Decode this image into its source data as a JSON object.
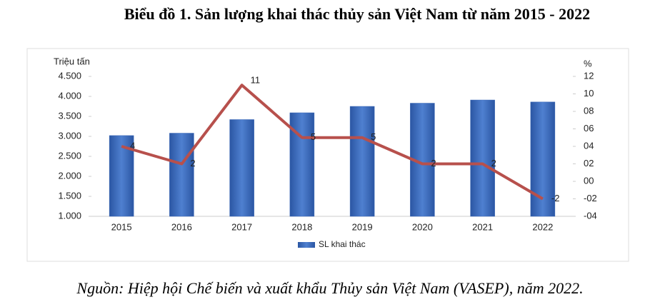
{
  "chart_data": {
    "type": "bar",
    "title": "Biểu đồ 1. Sản lượng khai thác thủy sản Việt Nam từ năm 2015 - 2022",
    "y_label": "Triệu tấn",
    "y2_label": "%",
    "categories": [
      "2015",
      "2016",
      "2017",
      "2018",
      "2019",
      "2020",
      "2021",
      "2022"
    ],
    "series": [
      {
        "name": "SL khai thác",
        "type": "bar",
        "color": "#3a68b8",
        "values": [
          3020,
          3080,
          3420,
          3590,
          3750,
          3830,
          3910,
          3860
        ]
      },
      {
        "type": "line",
        "axis": "y2",
        "color": "#b7504c",
        "values": [
          4,
          2,
          11,
          5,
          5,
          2,
          2,
          -2
        ]
      }
    ],
    "ylim": [
      1000,
      4500
    ],
    "yticks": [
      {
        "value": 1000,
        "label": "1.000"
      },
      {
        "value": 1500,
        "label": "1.500"
      },
      {
        "value": 2000,
        "label": "2.000"
      },
      {
        "value": 2500,
        "label": "2.500"
      },
      {
        "value": 3000,
        "label": "3.000"
      },
      {
        "value": 3500,
        "label": "3.500"
      },
      {
        "value": 4000,
        "label": "4.000"
      },
      {
        "value": 4500,
        "label": "4.500"
      }
    ],
    "y2lim": [
      -4,
      12
    ],
    "y2ticks": [
      {
        "value": -4,
        "label": "-04"
      },
      {
        "value": -2,
        "label": "-02"
      },
      {
        "value": 0,
        "label": "00"
      },
      {
        "value": 2,
        "label": "02"
      },
      {
        "value": 4,
        "label": "04"
      },
      {
        "value": 6,
        "label": "06"
      },
      {
        "value": 8,
        "label": "08"
      },
      10,
      12
    ],
    "grid": false,
    "legend": "bottom"
  },
  "source": "Nguồn: Hiệp hội Chế biến và xuất khẩu Thủy sản Việt Nam (VASEP), năm 2022."
}
